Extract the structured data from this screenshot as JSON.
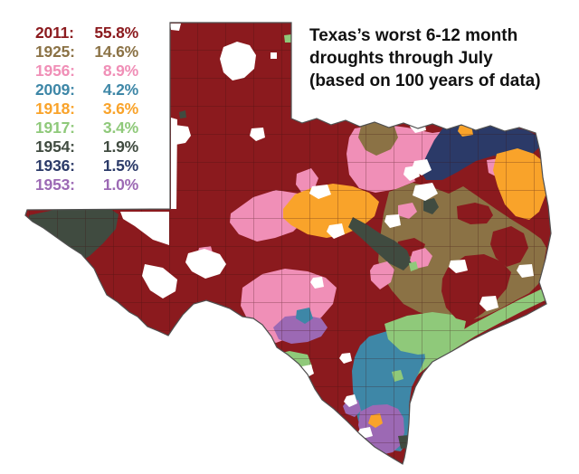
{
  "title": {
    "line1": "Texas’s worst 6-12 month",
    "line2": "droughts through July",
    "line3": "(based on 100 years of data)"
  },
  "legend": {
    "entries": [
      {
        "year": "2011:",
        "value": "55.8%",
        "color": "#8B1A1E"
      },
      {
        "year": "1925:",
        "value": "14.6%",
        "color": "#8B7245"
      },
      {
        "year": "1956:",
        "value": "8.9%",
        "color": "#F08FB7"
      },
      {
        "year": "2009:",
        "value": "4.2%",
        "color": "#3E87A7"
      },
      {
        "year": "1918:",
        "value": "3.6%",
        "color": "#F9A32A"
      },
      {
        "year": "1917:",
        "value": "3.4%",
        "color": "#8FC97A"
      },
      {
        "year": "1954:",
        "value": "1.9%",
        "color": "#404B40"
      },
      {
        "year": "1936:",
        "value": "1.5%",
        "color": "#2B3A68"
      },
      {
        "year": "1953:",
        "value": "1.0%",
        "color": "#9C69B4"
      }
    ]
  },
  "map": {
    "region_label": "Texas",
    "base_year": "2011",
    "palette": {
      "2011": "#8B1A1E",
      "1925": "#8B7245",
      "1956": "#F08FB7",
      "2009": "#3E87A7",
      "1918": "#F9A32A",
      "1917": "#8FC97A",
      "1954": "#404B40",
      "1936": "#2B3A68",
      "1953": "#9C69B4",
      "nodata": "#FFFFFF"
    },
    "county_line_color": "rgba(60,16,16,0.5)",
    "outline_color": "#4F4F4F",
    "background": "#FFFFFF"
  },
  "chart_data": {
    "type": "choropleth",
    "title": "Texas's worst 6-12 month droughts through July (based on 100 years of data)",
    "region": "Texas counties",
    "categories": [
      "2011",
      "1925",
      "1956",
      "2009",
      "1918",
      "1917",
      "1954",
      "1936",
      "1953"
    ],
    "values": [
      55.8,
      14.6,
      8.9,
      4.2,
      3.6,
      3.4,
      1.9,
      1.5,
      1.0
    ],
    "value_unit": "percent of state with that year as worst drought",
    "legend_position": "top-left",
    "dominant_category": "2011"
  }
}
